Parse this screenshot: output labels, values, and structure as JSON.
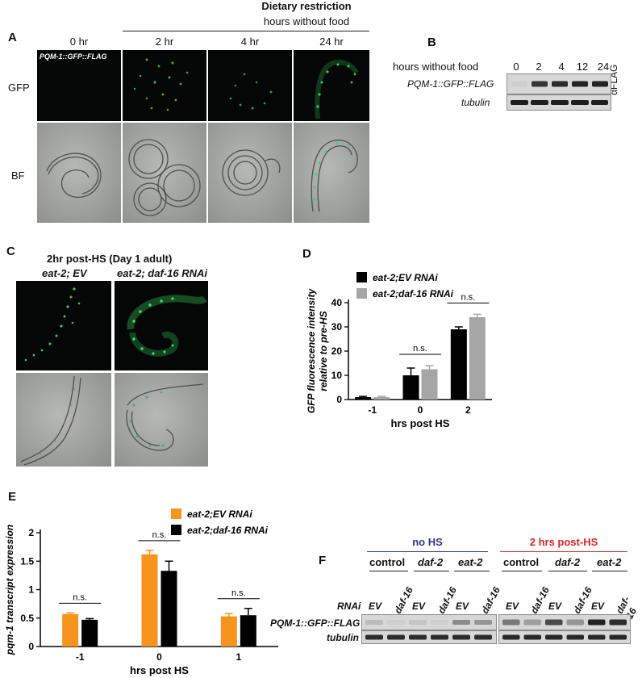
{
  "panelA": {
    "letter": "A",
    "title": "Dietary restriction",
    "subtitle": "hours without food",
    "timepoints": [
      "0 hr",
      "2 hr",
      "4 hr",
      "24 hr"
    ],
    "row_gfp": "GFP",
    "row_bf": "BF",
    "strain_label": "PQM-1::GFP::FLAG",
    "colors": {
      "gfp": "#2fd25a",
      "fluor_bg": "#040705",
      "bf_bg": "#9fa19e"
    }
  },
  "panelB": {
    "letter": "B",
    "header": "hours without food",
    "timepoints": [
      "0",
      "2",
      "4",
      "12",
      "24"
    ],
    "rows": [
      "PQM-1::GFP::FLAG",
      "tubulin"
    ],
    "antibody": "αFLAG",
    "band_intensity": [
      0.05,
      0.85,
      0.9,
      0.95,
      0.95
    ]
  },
  "panelC": {
    "letter": "C",
    "title": "2hr post-HS (Day 1 adult)",
    "columns": [
      "eat-2; EV",
      "eat-2; daf-16 RNAi"
    ]
  },
  "panelE": {
    "letter": "E"
  },
  "panelF": {
    "letter": "F",
    "group_no_hs": "no HS",
    "group_post_hs": "2 hrs post-HS",
    "conditions": [
      "control",
      "daf-2",
      "eat-2"
    ],
    "rnai_label": "RNAi",
    "rnai_lanes": [
      "EV",
      "daf-16",
      "EV",
      "daf-16",
      "EV",
      "daf-16"
    ],
    "rows": [
      "PQM-1::GFP::FLAG",
      "tubulin"
    ],
    "colors": {
      "no_hs": "#2b3595",
      "post_hs": "#e32224"
    },
    "band_intensity_no_hs": [
      0.15,
      0.05,
      0.1,
      0.05,
      0.4,
      0.35
    ],
    "band_intensity_post_hs": [
      0.5,
      0.3,
      0.75,
      0.35,
      0.95,
      0.9
    ]
  },
  "chart_data": [
    {
      "panel": "D",
      "type": "bar",
      "title": "",
      "xlabel": "hrs post HS",
      "ylabel": "GFP fluorescence intensity relative to pre-HS",
      "categories": [
        "-1",
        "0",
        "2"
      ],
      "ylim": [
        0,
        40
      ],
      "yticks": [
        0,
        10,
        20,
        30,
        40
      ],
      "legend_position": "top-left",
      "series": [
        {
          "name": "eat-2;EV RNAi",
          "color": "#000000",
          "values": [
            1,
            10,
            29
          ],
          "errors": [
            0.3,
            3,
            1
          ]
        },
        {
          "name": "eat-2;daf-16 RNAi",
          "color": "#a6a6a6",
          "values": [
            1,
            12.5,
            34
          ],
          "errors": [
            0.3,
            1.5,
            1.2
          ]
        }
      ],
      "annotations": [
        {
          "category": "0",
          "text": "n.s."
        },
        {
          "category": "2",
          "text": "n.s."
        }
      ]
    },
    {
      "panel": "E",
      "type": "bar",
      "title": "",
      "xlabel": "hrs post HS",
      "ylabel": "pqm-1 transcript expression",
      "categories": [
        "-1",
        "0",
        "1"
      ],
      "ylim": [
        0,
        2
      ],
      "yticks": [
        0,
        0.5,
        1,
        1.5,
        2
      ],
      "ytick_labels": [
        "0",
        "0.5",
        "1",
        "1.5",
        "2"
      ],
      "legend_position": "top-right",
      "series": [
        {
          "name": "eat-2;EV RNAi",
          "color": "#f7941d",
          "values": [
            0.57,
            1.62,
            0.53
          ],
          "errors": [
            0.02,
            0.07,
            0.05
          ]
        },
        {
          "name": "eat-2;daf-16 RNAi",
          "color": "#000000",
          "values": [
            0.47,
            1.33,
            0.55
          ],
          "errors": [
            0.02,
            0.17,
            0.12
          ]
        }
      ],
      "annotations": [
        {
          "category": "-1",
          "text": "n.s."
        },
        {
          "category": "0",
          "text": "n.s."
        },
        {
          "category": "1",
          "text": "n.s."
        }
      ]
    }
  ]
}
